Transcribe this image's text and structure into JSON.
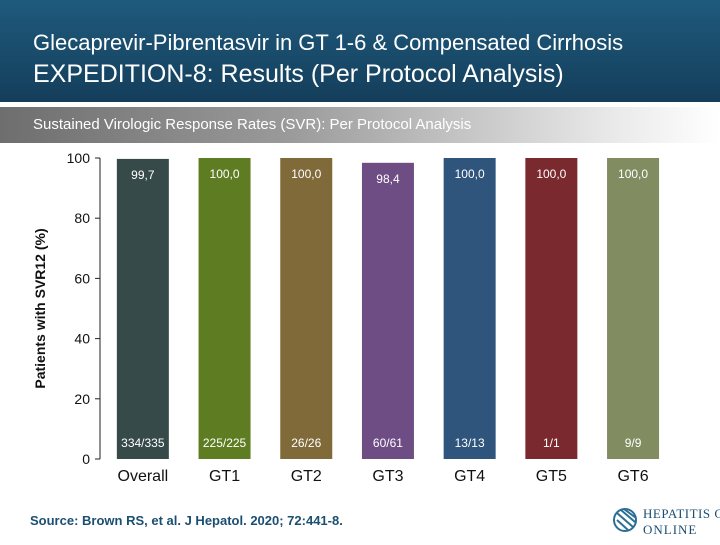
{
  "header": {
    "title_line1": "Glecaprevir-Pibrentasvir in GT 1-6 & Compensated Cirrhosis",
    "title_line2": "EXPEDITION-8: Results (Per Protocol Analysis)"
  },
  "subtitle": "Sustained Virologic Response Rates (SVR): Per Protocol Analysis",
  "source": "Source: Brown RS, et al. J Hepatol. 2020; 72:441-8.",
  "logo": {
    "line1": "HEPATITIS C",
    "line2": "ONLINE",
    "icon": "hepatitis-c-online-logo-icon"
  },
  "colors": {
    "header_bg": "#1a4b6d",
    "axis": "#222222"
  },
  "chart_data": {
    "type": "bar",
    "ylabel": "Patients with SVR12 (%)",
    "ylim": [
      0,
      100
    ],
    "yticks": [
      0,
      20,
      40,
      60,
      80,
      100
    ],
    "categories": [
      "Overall",
      "GT1",
      "GT2",
      "GT3",
      "GT4",
      "GT5",
      "GT6"
    ],
    "values": [
      99.7,
      100.0,
      100.0,
      98.4,
      100.0,
      100.0,
      100.0
    ],
    "value_labels": [
      "99,7",
      "100,0",
      "100,0",
      "98,4",
      "100,0",
      "100,0",
      "100,0"
    ],
    "counts": [
      "334/335",
      "225/225",
      "26/26",
      "60/61",
      "13/13",
      "1/1",
      "9/9"
    ],
    "bar_colors": [
      "#374a4a",
      "#5e7d22",
      "#806a3a",
      "#6e4d84",
      "#2f557c",
      "#7a2a2e",
      "#818d61"
    ],
    "grid": false
  }
}
